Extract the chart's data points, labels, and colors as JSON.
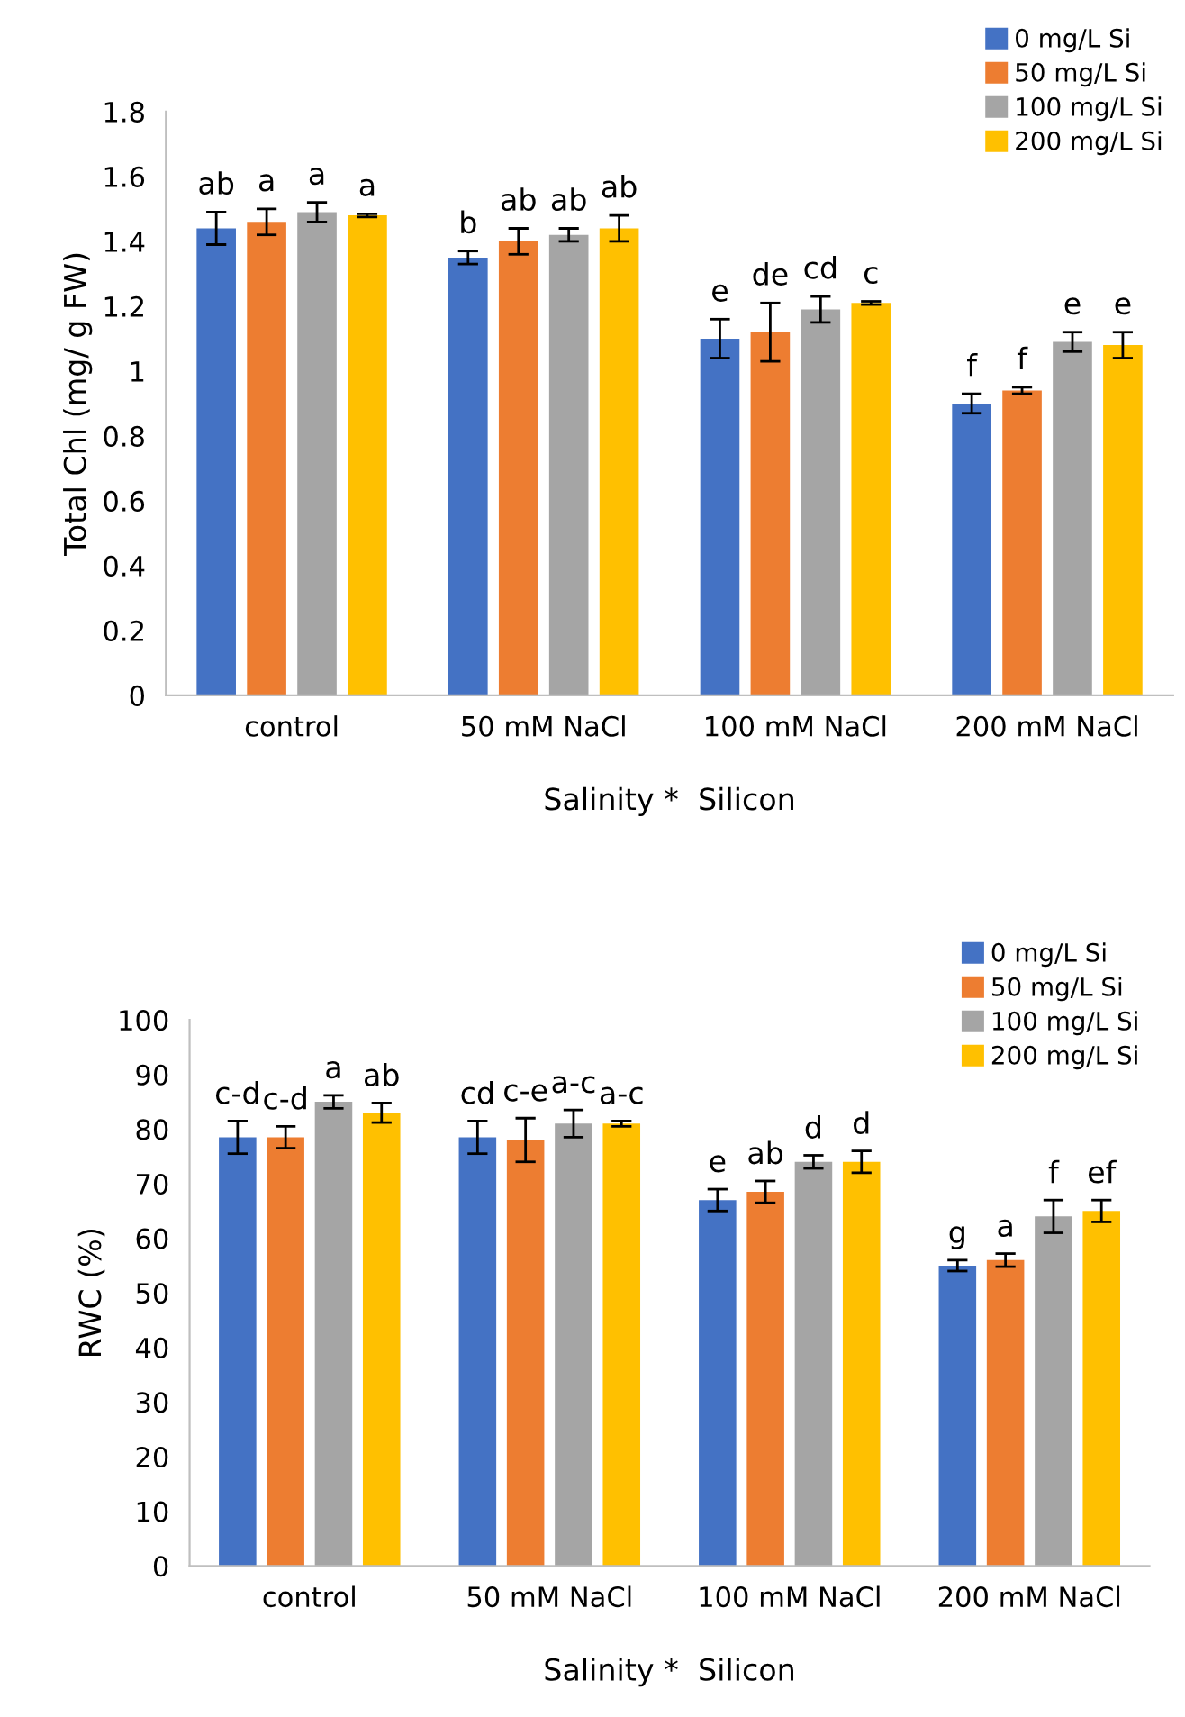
{
  "chart_data": [
    {
      "type": "bar",
      "xlabel": "Salinity *  Silicon",
      "ylabel": "Total Chl (mg/ g FW)",
      "categories": [
        "control",
        "50 mM NaCl",
        "100 mM NaCl",
        "200 mM NaCl"
      ],
      "ylim": [
        0,
        1.8
      ],
      "yticks": [
        0,
        {
          "value": 0.2,
          "label": "0.2"
        },
        {
          "value": 0.4,
          "label": "0.4"
        },
        {
          "value": 0.6,
          "label": "0.6"
        },
        {
          "value": 0.8,
          "label": "0.8"
        },
        1,
        {
          "value": 1.2,
          "label": "1.2"
        },
        {
          "value": 1.4,
          "label": "1.4"
        },
        {
          "value": 1.6,
          "label": "1.6"
        },
        {
          "value": 1.8,
          "label": "1.8"
        }
      ],
      "grid": false,
      "legend": "top right",
      "series": [
        {
          "name": "0 mg/L Si",
          "color": "#4472c4",
          "values": [
            1.44,
            1.35,
            1.1,
            0.9
          ],
          "errors": [
            0.05,
            0.02,
            0.06,
            0.03
          ],
          "value_labels": [
            "ab",
            "b",
            "e",
            "f"
          ]
        },
        {
          "name": "50 mg/L Si",
          "color": "#ed7d31",
          "values": [
            1.46,
            1.4,
            1.12,
            0.94
          ],
          "errors": [
            0.04,
            0.04,
            0.09,
            0.01
          ],
          "value_labels": [
            "a",
            "ab",
            "de",
            "f"
          ]
        },
        {
          "name": "100 mg/L Si",
          "color": "#a5a5a5",
          "values": [
            1.49,
            1.42,
            1.19,
            1.09
          ],
          "errors": [
            0.03,
            0.02,
            0.04,
            0.03
          ],
          "value_labels": [
            "a",
            "ab",
            "cd",
            "e"
          ]
        },
        {
          "name": "200 mg/L Si",
          "color": "#ffc000",
          "values": [
            1.48,
            1.44,
            1.21,
            1.08
          ],
          "errors": [
            0.005,
            0.04,
            0.005,
            0.04
          ],
          "value_labels": [
            "a",
            "ab",
            "c",
            "e"
          ]
        }
      ]
    },
    {
      "type": "bar",
      "xlabel": "Salinity *  Silicon",
      "ylabel": "RWC (%)",
      "categories": [
        "control",
        "50 mM NaCl",
        "100 mM NaCl",
        "200 mM NaCl"
      ],
      "ylim": [
        0,
        100
      ],
      "yticks": [
        0,
        10,
        20,
        30,
        40,
        50,
        60,
        70,
        80,
        90,
        100
      ],
      "grid": false,
      "legend": "top right",
      "series": [
        {
          "name": "0 mg/L Si",
          "color": "#4472c4",
          "values": [
            78.5,
            78.5,
            67,
            55
          ],
          "errors": [
            3,
            3,
            2,
            1
          ],
          "value_labels": [
            "c-d",
            "cd",
            "e",
            "g"
          ]
        },
        {
          "name": "50 mg/L Si",
          "color": "#ed7d31",
          "values": [
            78.5,
            78,
            68.5,
            56
          ],
          "errors": [
            2,
            4,
            2,
            1.2
          ],
          "value_labels": [
            "c-d",
            "c-e",
            "ab",
            "a"
          ]
        },
        {
          "name": "100 mg/L Si",
          "color": "#a5a5a5",
          "values": [
            85,
            81,
            74,
            64
          ],
          "errors": [
            1.2,
            2.5,
            1.2,
            3
          ],
          "value_labels": [
            "a",
            "a-c",
            "d",
            "f"
          ]
        },
        {
          "name": "200 mg/L Si",
          "color": "#ffc000",
          "values": [
            83,
            81,
            74,
            65
          ],
          "errors": [
            1.8,
            0.5,
            2,
            2
          ],
          "value_labels": [
            "ab",
            "a-c",
            "d",
            "ef"
          ]
        }
      ]
    }
  ]
}
